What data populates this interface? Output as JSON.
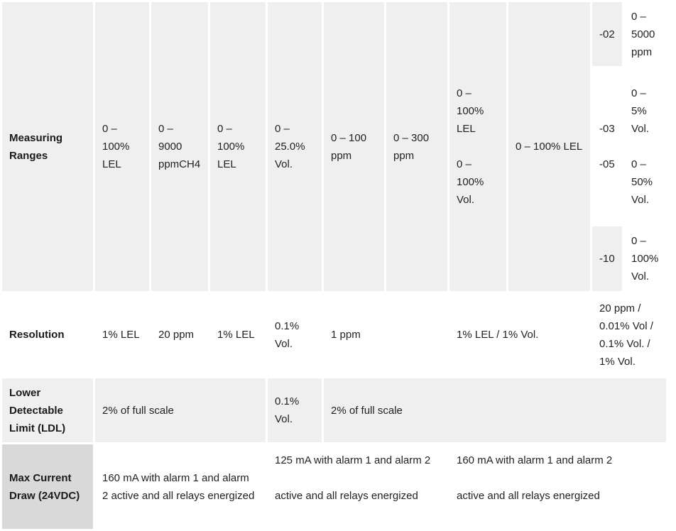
{
  "rows": {
    "measuring": {
      "header": "Measuring\nRanges",
      "col1": "0 –\n100%\nLEL",
      "col2": "0 –\n9000\nppmCH4",
      "col3": "0 –\n100%\nLEL",
      "col4": "0 –\n25.0%\nVol.",
      "col5": "0 – 100\nppm",
      "col6": "0 – 300\nppm",
      "col7": "0 –\n100%\nLEL\n\n0 –\n100%\nVol.",
      "col8": "0 – 100% LEL",
      "sub": [
        {
          "code": "-02",
          "range": "0 –\n5000\nppm"
        },
        {
          "code": "-03\n\n-05",
          "range": "0 –\n5%\nVol.\n\n0 –\n50%\nVol."
        },
        {
          "code": "-10",
          "range": "0 –\n100%\nVol."
        }
      ]
    },
    "resolution": {
      "header": "Resolution",
      "col1": "1% LEL",
      "col2": "20 ppm",
      "col3": "1% LEL",
      "col4": "0.1%\nVol.",
      "col56": "1 ppm",
      "col78": "1% LEL / 1% Vol.",
      "col9": "20 ppm /\n0.01% Vol /\n0.1% Vol. /\n1% Vol."
    },
    "ldl": {
      "header": "Lower\nDetectable\nLimit (LDL)",
      "col13": "2% of full scale",
      "col4": "0.1%\nVol.",
      "col59": "2% of full scale"
    },
    "current": {
      "header": "Max Current\nDraw (24VDC)",
      "col13": "160 mA with alarm 1 and alarm\n2 active and all relays energized",
      "col46": "125 mA with alarm 1 and alarm 2\n\nactive and all relays energized",
      "col79": "160 mA with alarm 1 and alarm 2\n\nactive and all relays energized"
    }
  }
}
